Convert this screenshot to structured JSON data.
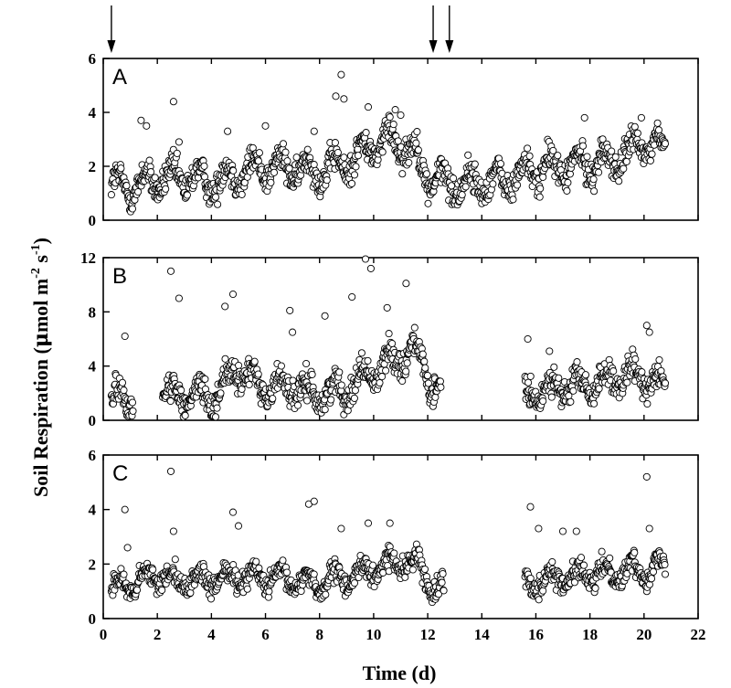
{
  "chart_data": {
    "type": "scatter",
    "xlabel": "Time (d)",
    "ylabel": "Soil Respiration (μmol m-2 s-1)",
    "ylabel_parts": [
      "Soil Respiration (",
      "μ",
      "mol m",
      "-2",
      " s",
      "-1",
      ")"
    ],
    "xlim": [
      0,
      22
    ],
    "xticks": [
      "0",
      "2",
      "4",
      "6",
      "8",
      "10",
      "12",
      "14",
      "16",
      "18",
      "20",
      "22"
    ],
    "arrows_at_day": [
      0.2,
      12.1,
      12.7
    ],
    "panels": [
      {
        "label": "A",
        "ylim": [
          0,
          6
        ],
        "yticks": [
          "0",
          "2",
          "4",
          "6"
        ],
        "segments": [
          [
            0.3,
            20.8
          ]
        ],
        "baseline": [
          [
            0.3,
            1.3
          ],
          [
            1,
            1.2
          ],
          [
            2,
            1.5
          ],
          [
            3,
            1.6
          ],
          [
            4,
            1.4
          ],
          [
            5,
            1.7
          ],
          [
            6,
            2.0
          ],
          [
            7,
            1.9
          ],
          [
            8,
            1.8
          ],
          [
            9,
            2.1
          ],
          [
            10,
            2.8
          ],
          [
            10.8,
            3.0
          ],
          [
            11.5,
            2.5
          ],
          [
            12,
            1.6
          ],
          [
            13,
            1.3
          ],
          [
            14,
            1.4
          ],
          [
            15,
            1.5
          ],
          [
            16,
            1.9
          ],
          [
            17,
            2.0
          ],
          [
            18,
            2.1
          ],
          [
            19,
            2.2
          ],
          [
            20,
            2.9
          ],
          [
            20.8,
            2.6
          ]
        ],
        "amplitude": 0.75,
        "outliers": [
          [
            1.4,
            3.7
          ],
          [
            1.6,
            3.5
          ],
          [
            2.6,
            4.4
          ],
          [
            2.8,
            2.9
          ],
          [
            4.6,
            3.3
          ],
          [
            6.0,
            3.5
          ],
          [
            7.8,
            3.3
          ],
          [
            8.6,
            4.6
          ],
          [
            8.8,
            5.4
          ],
          [
            8.9,
            4.5
          ],
          [
            9.8,
            4.2
          ],
          [
            10.8,
            4.1
          ],
          [
            11.0,
            3.9
          ],
          [
            17.8,
            3.8
          ],
          [
            19.9,
            3.8
          ],
          [
            20.5,
            3.6
          ]
        ]
      },
      {
        "label": "B",
        "ylim": [
          0,
          12
        ],
        "yticks": [
          "0",
          "4",
          "8",
          "12"
        ],
        "segments": [
          [
            0.3,
            1.1
          ],
          [
            2.2,
            12.5
          ],
          [
            15.6,
            20.8
          ]
        ],
        "baseline": [
          [
            0.3,
            1.6
          ],
          [
            1.1,
            1.7
          ],
          [
            2.2,
            2.0
          ],
          [
            3,
            1.8
          ],
          [
            4,
            1.7
          ],
          [
            4.6,
            2.8
          ],
          [
            5,
            3.8
          ],
          [
            5.5,
            3.0
          ],
          [
            6,
            2.4
          ],
          [
            7,
            2.6
          ],
          [
            7.5,
            2.0
          ],
          [
            8,
            2.0
          ],
          [
            9,
            2.3
          ],
          [
            9.5,
            3.0
          ],
          [
            10,
            3.6
          ],
          [
            10.5,
            4.2
          ],
          [
            11,
            4.8
          ],
          [
            11.5,
            5.2
          ],
          [
            11.8,
            4.5
          ],
          [
            12.1,
            2.4
          ],
          [
            12.5,
            2.2
          ],
          [
            15.6,
            1.6
          ],
          [
            16,
            2.1
          ],
          [
            17,
            2.5
          ],
          [
            18,
            2.6
          ],
          [
            19,
            3.0
          ],
          [
            20,
            3.3
          ],
          [
            20.8,
            2.5
          ]
        ],
        "amplitude": 1.4,
        "outliers": [
          [
            0.8,
            6.2
          ],
          [
            2.5,
            11.0
          ],
          [
            2.8,
            9.0
          ],
          [
            4.5,
            8.4
          ],
          [
            4.8,
            9.3
          ],
          [
            6.9,
            8.1
          ],
          [
            7.0,
            6.5
          ],
          [
            8.2,
            7.7
          ],
          [
            9.2,
            9.1
          ],
          [
            9.7,
            11.9
          ],
          [
            9.9,
            11.2
          ],
          [
            10.5,
            8.3
          ],
          [
            11.2,
            10.1
          ],
          [
            15.7,
            6.0
          ],
          [
            16.5,
            5.1
          ],
          [
            20.1,
            7.0
          ],
          [
            20.2,
            6.5
          ]
        ]
      },
      {
        "label": "C",
        "ylim": [
          0,
          6
        ],
        "yticks": [
          "0",
          "2",
          "4",
          "6"
        ],
        "segments": [
          [
            0.3,
            12.6
          ],
          [
            15.6,
            20.8
          ]
        ],
        "baseline": [
          [
            0.3,
            1.1
          ],
          [
            1,
            1.2
          ],
          [
            2,
            1.6
          ],
          [
            3,
            1.4
          ],
          [
            4,
            1.4
          ],
          [
            5,
            1.6
          ],
          [
            6,
            1.5
          ],
          [
            7,
            1.4
          ],
          [
            8,
            1.3
          ],
          [
            9,
            1.5
          ],
          [
            10,
            1.8
          ],
          [
            11,
            2.1
          ],
          [
            11.8,
            1.9
          ],
          [
            12.1,
            1.2
          ],
          [
            12.6,
            1.0
          ],
          [
            15.6,
            1.3
          ],
          [
            16,
            1.4
          ],
          [
            17,
            1.5
          ],
          [
            18,
            1.6
          ],
          [
            19,
            1.7
          ],
          [
            20,
            1.8
          ],
          [
            20.8,
            1.9
          ]
        ],
        "amplitude": 0.55,
        "outliers": [
          [
            0.8,
            4.0
          ],
          [
            0.9,
            2.6
          ],
          [
            2.5,
            5.4
          ],
          [
            2.6,
            3.2
          ],
          [
            4.8,
            3.9
          ],
          [
            5.0,
            3.4
          ],
          [
            7.6,
            4.2
          ],
          [
            7.8,
            4.3
          ],
          [
            8.8,
            3.3
          ],
          [
            9.8,
            3.5
          ],
          [
            10.6,
            3.5
          ],
          [
            15.8,
            4.1
          ],
          [
            16.1,
            3.3
          ],
          [
            17.0,
            3.2
          ],
          [
            17.5,
            3.2
          ],
          [
            20.1,
            5.2
          ],
          [
            20.2,
            3.3
          ]
        ]
      }
    ]
  }
}
